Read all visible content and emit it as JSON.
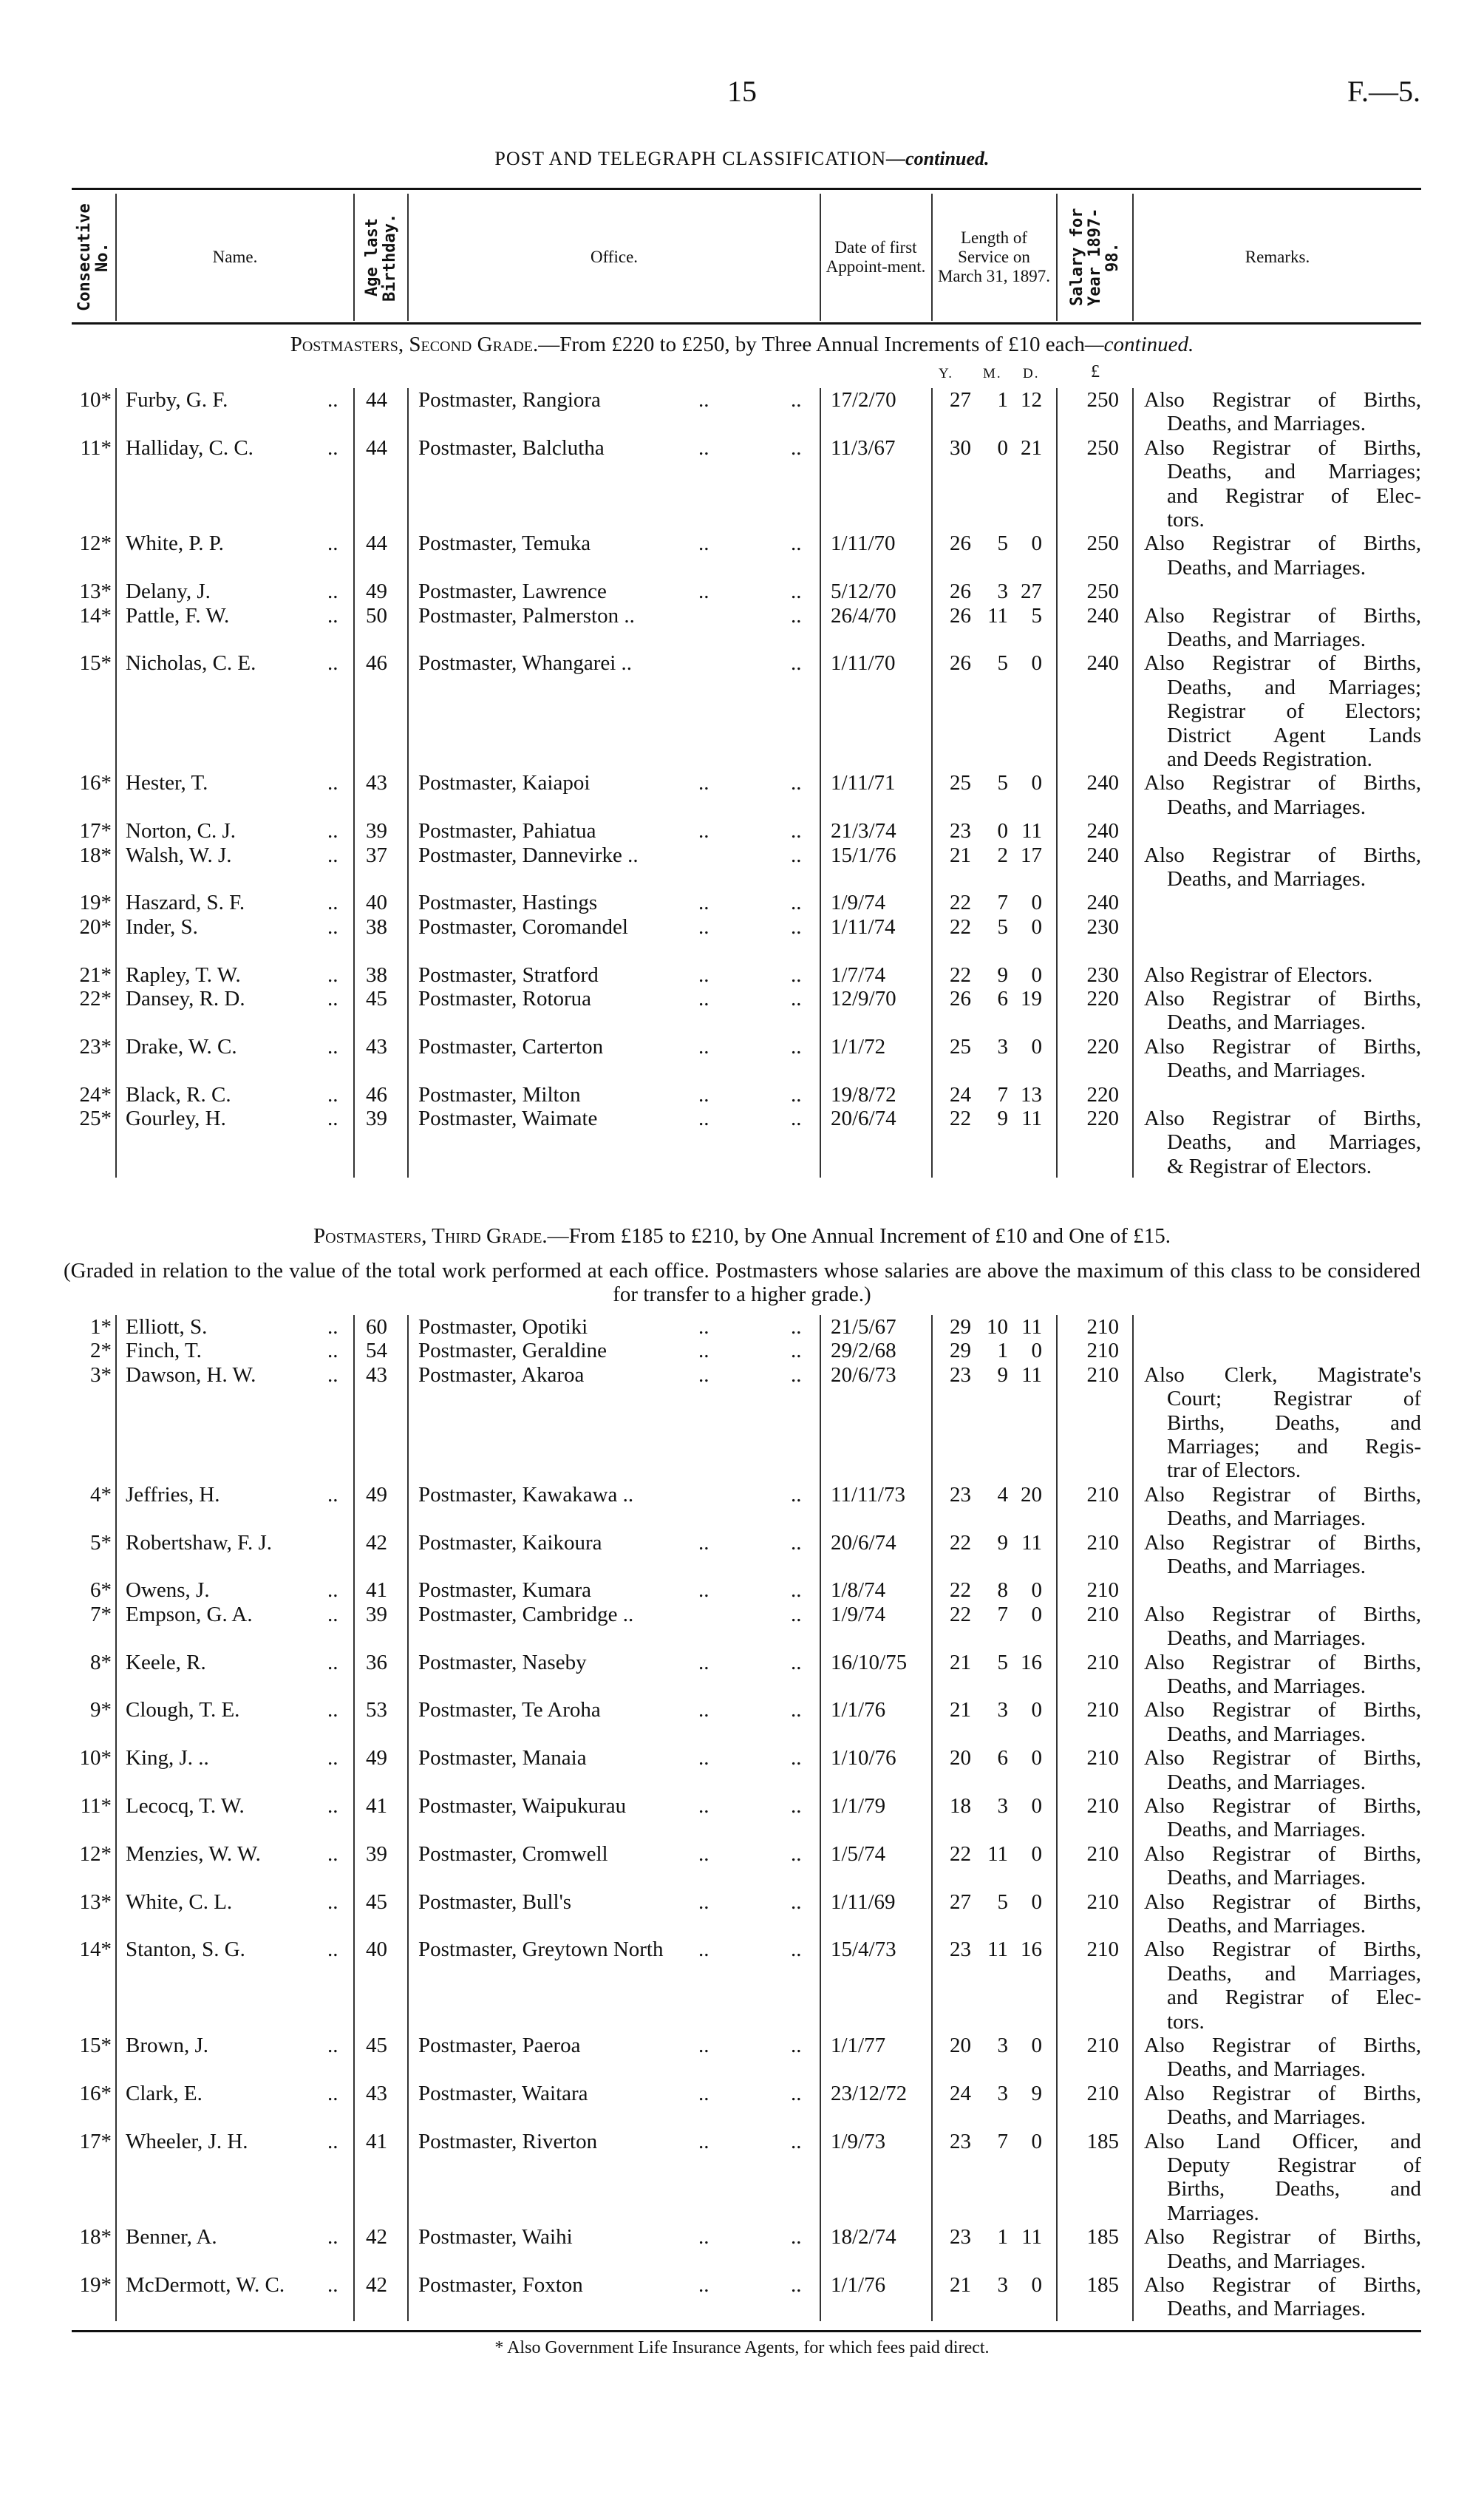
{
  "page": {
    "number": "15",
    "doc_ref": "F.—5."
  },
  "title": {
    "main": "POST AND TELEGRAPH CLASSIFICATION",
    "suffix": "—continued."
  },
  "columns": {
    "no": "Consecutive No.",
    "name": "Name.",
    "age": "Age last Birthday.",
    "office": "Office.",
    "date": "Date of first Appoint-ment.",
    "length": "Length of Service on March 31, 1897.",
    "salary": "Salary for Year 1897-98.",
    "remarks": "Remarks."
  },
  "units": {
    "y": "Y.",
    "m": "M.",
    "d": "D.",
    "salary": "£"
  },
  "leader": "..",
  "sections": [
    {
      "heading_sc": "Postmasters, Second Grade.",
      "heading_rest": "—From £220 to £250, by Three Annual Increments of £10 each",
      "heading_italic": "—continued.",
      "rows": [
        {
          "no": "10*",
          "name": "Furby, G. F.",
          "age": "44",
          "office": "Postmaster, Rangiora",
          "date": "17/2/70",
          "y": "27",
          "m": "1",
          "d": "12",
          "salary": "250",
          "remarks": [
            "Also Registrar of Births,",
            "Deaths, and Marriages."
          ]
        },
        {
          "no": "11*",
          "name": "Halliday, C. C.",
          "age": "44",
          "office": "Postmaster, Balclutha",
          "date": "11/3/67",
          "y": "30",
          "m": "0",
          "d": "21",
          "salary": "250",
          "remarks": [
            "Also Registrar of Births,",
            "Deaths, and Marriages;",
            "and Registrar of Elec-",
            "tors."
          ]
        },
        {
          "no": "12*",
          "name": "White, P. P.",
          "age": "44",
          "office": "Postmaster, Temuka",
          "date": "1/11/70",
          "y": "26",
          "m": "5",
          "d": "0",
          "salary": "250",
          "remarks": [
            "Also Registrar of Births,",
            "Deaths, and Marriages."
          ]
        },
        {
          "no": "13*",
          "name": "Delany, J.",
          "age": "49",
          "office": "Postmaster, Lawrence",
          "date": "5/12/70",
          "y": "26",
          "m": "3",
          "d": "27",
          "salary": "250",
          "remarks": []
        },
        {
          "no": "14*",
          "name": "Pattle, F. W.",
          "age": "50",
          "office": "Postmaster, Palmerston ..",
          "date": "26/4/70",
          "y": "26",
          "m": "11",
          "d": "5",
          "salary": "240",
          "remarks": [
            "Also Registrar of Births,",
            "Deaths, and Marriages."
          ]
        },
        {
          "no": "15*",
          "name": "Nicholas, C. E.",
          "age": "46",
          "office": "Postmaster, Whangarei ..",
          "date": "1/11/70",
          "y": "26",
          "m": "5",
          "d": "0",
          "salary": "240",
          "remarks": [
            "Also Registrar of Births,",
            "Deaths, and Marriages;",
            "Registrar of Electors;",
            "District Agent Lands",
            "and Deeds Registration."
          ]
        },
        {
          "no": "16*",
          "name": "Hester, T.",
          "age": "43",
          "office": "Postmaster, Kaiapoi",
          "date": "1/11/71",
          "y": "25",
          "m": "5",
          "d": "0",
          "salary": "240",
          "remarks": [
            "Also Registrar of Births,",
            "Deaths, and Marriages."
          ]
        },
        {
          "no": "17*",
          "name": "Norton, C. J.",
          "age": "39",
          "office": "Postmaster, Pahiatua",
          "date": "21/3/74",
          "y": "23",
          "m": "0",
          "d": "11",
          "salary": "240",
          "remarks": []
        },
        {
          "no": "18*",
          "name": "Walsh, W. J.",
          "age": "37",
          "office": "Postmaster, Dannevirke ..",
          "date": "15/1/76",
          "y": "21",
          "m": "2",
          "d": "17",
          "salary": "240",
          "remarks": [
            "Also Registrar of Births,",
            "Deaths, and Marriages."
          ]
        },
        {
          "no": "19*",
          "name": "Haszard, S. F.",
          "age": "40",
          "office": "Postmaster, Hastings",
          "date": "1/9/74",
          "y": "22",
          "m": "7",
          "d": "0",
          "salary": "240",
          "remarks": []
        },
        {
          "no": "20*",
          "name": "Inder, S.",
          "age": "38",
          "office": "Postmaster, Coromandel",
          "date": "1/11/74",
          "y": "22",
          "m": "5",
          "d": "0",
          "salary": "230",
          "remarks": []
        },
        {
          "no": "21*",
          "name": "Rapley, T. W.",
          "age": "38",
          "office": "Postmaster, Stratford",
          "date": "1/7/74",
          "y": "22",
          "m": "9",
          "d": "0",
          "salary": "230",
          "remarks": [
            "Also Registrar of Electors."
          ]
        },
        {
          "no": "22*",
          "name": "Dansey, R. D.",
          "age": "45",
          "office": "Postmaster, Rotorua",
          "date": "12/9/70",
          "y": "26",
          "m": "6",
          "d": "19",
          "salary": "220",
          "remarks": [
            "Also Registrar of Births,",
            "Deaths, and Marriages."
          ]
        },
        {
          "no": "23*",
          "name": "Drake, W. C.",
          "age": "43",
          "office": "Postmaster, Carterton",
          "date": "1/1/72",
          "y": "25",
          "m": "3",
          "d": "0",
          "salary": "220",
          "remarks": [
            "Also Registrar of Births,",
            "Deaths, and Marriages."
          ]
        },
        {
          "no": "24*",
          "name": "Black, R. C.",
          "age": "46",
          "office": "Postmaster, Milton",
          "date": "19/8/72",
          "y": "24",
          "m": "7",
          "d": "13",
          "salary": "220",
          "remarks": []
        },
        {
          "no": "25*",
          "name": "Gourley, H.",
          "age": "39",
          "office": "Postmaster, Waimate",
          "date": "20/6/74",
          "y": "22",
          "m": "9",
          "d": "11",
          "salary": "220",
          "remarks": [
            "Also Registrar of Births,",
            "Deaths, and Marriages,",
            "& Registrar of Electors."
          ]
        }
      ]
    },
    {
      "heading_sc": "Postmasters, Third Grade.",
      "heading_rest": "—From £185 to £210, by One Annual Increment of £10 and One of £15.",
      "note": "(Graded in relation to the value of the total work performed at each office. Postmasters whose salaries are above the maximum of this class to be considered for transfer to a higher grade.)",
      "rows": [
        {
          "no": "1*",
          "name": "Elliott, S.",
          "age": "60",
          "office": "Postmaster, Opotiki",
          "date": "21/5/67",
          "y": "29",
          "m": "10",
          "d": "11",
          "salary": "210",
          "remarks": []
        },
        {
          "no": "2*",
          "name": "Finch, T.",
          "age": "54",
          "office": "Postmaster, Geraldine",
          "date": "29/2/68",
          "y": "29",
          "m": "1",
          "d": "0",
          "salary": "210",
          "remarks": []
        },
        {
          "no": "3*",
          "name": "Dawson, H. W.",
          "age": "43",
          "office": "Postmaster, Akaroa",
          "date": "20/6/73",
          "y": "23",
          "m": "9",
          "d": "11",
          "salary": "210",
          "remarks": [
            "Also Clerk, Magistrate's",
            "Court; Registrar of",
            "Births, Deaths, and",
            "Marriages; and Regis-",
            "trar of Electors."
          ]
        },
        {
          "no": "4*",
          "name": "Jeffries, H.",
          "age": "49",
          "office": "Postmaster, Kawakawa ..",
          "date": "11/11/73",
          "y": "23",
          "m": "4",
          "d": "20",
          "salary": "210",
          "remarks": [
            "Also Registrar of Births,",
            "Deaths, and Marriages."
          ]
        },
        {
          "no": "5*",
          "name": "Robertshaw, F. J.",
          "no_leader": true,
          "age": "42",
          "office": "Postmaster, Kaikoura",
          "date": "20/6/74",
          "y": "22",
          "m": "9",
          "d": "11",
          "salary": "210",
          "remarks": [
            "Also Registrar of Births,",
            "Deaths, and Marriages."
          ]
        },
        {
          "no": "6*",
          "name": "Owens, J.",
          "age": "41",
          "office": "Postmaster, Kumara",
          "date": "1/8/74",
          "y": "22",
          "m": "8",
          "d": "0",
          "salary": "210",
          "remarks": []
        },
        {
          "no": "7*",
          "name": "Empson, G. A.",
          "age": "39",
          "office": "Postmaster, Cambridge ..",
          "date": "1/9/74",
          "y": "22",
          "m": "7",
          "d": "0",
          "salary": "210",
          "remarks": [
            "Also Registrar of Births,",
            "Deaths, and Marriages."
          ]
        },
        {
          "no": "8*",
          "name": "Keele, R.",
          "age": "36",
          "office": "Postmaster, Naseby",
          "date": "16/10/75",
          "y": "21",
          "m": "5",
          "d": "16",
          "salary": "210",
          "remarks": [
            "Also Registrar of Births,",
            "Deaths, and Marriages."
          ]
        },
        {
          "no": "9*",
          "name": "Clough, T. E.",
          "age": "53",
          "office": "Postmaster, Te Aroha",
          "date": "1/1/76",
          "y": "21",
          "m": "3",
          "d": "0",
          "salary": "210",
          "remarks": [
            "Also Registrar of Births,",
            "Deaths, and Marriages."
          ]
        },
        {
          "no": "10*",
          "name": "King, J. ..",
          "age": "49",
          "office": "Postmaster, Manaia",
          "date": "1/10/76",
          "y": "20",
          "m": "6",
          "d": "0",
          "salary": "210",
          "remarks": [
            "Also Registrar of Births,",
            "Deaths, and Marriages."
          ]
        },
        {
          "no": "11*",
          "name": "Lecocq, T. W.",
          "age": "41",
          "office": "Postmaster, Waipukurau",
          "date": "1/1/79",
          "y": "18",
          "m": "3",
          "d": "0",
          "salary": "210",
          "remarks": [
            "Also Registrar of Births,",
            "Deaths, and Marriages."
          ]
        },
        {
          "no": "12*",
          "name": "Menzies, W. W.",
          "age": "39",
          "office": "Postmaster, Cromwell",
          "date": "1/5/74",
          "y": "22",
          "m": "11",
          "d": "0",
          "salary": "210",
          "remarks": [
            "Also Registrar of Births,",
            "Deaths, and Marriages."
          ]
        },
        {
          "no": "13*",
          "name": "White, C. L.",
          "age": "45",
          "office": "Postmaster, Bull's",
          "date": "1/11/69",
          "y": "27",
          "m": "5",
          "d": "0",
          "salary": "210",
          "remarks": [
            "Also Registrar of Births,",
            "Deaths, and Marriages."
          ]
        },
        {
          "no": "14*",
          "name": "Stanton, S. G.",
          "age": "40",
          "office": "Postmaster, Greytown North",
          "date": "15/4/73",
          "y": "23",
          "m": "11",
          "d": "16",
          "salary": "210",
          "remarks": [
            "Also Registrar of Births,",
            "Deaths, and Marriages,",
            "and Registrar of Elec-",
            "tors."
          ]
        },
        {
          "no": "15*",
          "name": "Brown, J.",
          "age": "45",
          "office": "Postmaster, Paeroa",
          "date": "1/1/77",
          "y": "20",
          "m": "3",
          "d": "0",
          "salary": "210",
          "remarks": [
            "Also Registrar of Births,",
            "Deaths, and Marriages."
          ]
        },
        {
          "no": "16*",
          "name": "Clark, E.",
          "age": "43",
          "office": "Postmaster, Waitara",
          "date": "23/12/72",
          "y": "24",
          "m": "3",
          "d": "9",
          "salary": "210",
          "remarks": [
            "Also Registrar of Births,",
            "Deaths, and Marriages."
          ]
        },
        {
          "no": "17*",
          "name": "Wheeler, J. H.",
          "age": "41",
          "office": "Postmaster, Riverton",
          "date": "1/9/73",
          "y": "23",
          "m": "7",
          "d": "0",
          "salary": "185",
          "remarks": [
            "Also Land Officer, and",
            "Deputy Registrar of",
            "Births, Deaths, and",
            "Marriages."
          ]
        },
        {
          "no": "18*",
          "name": "Benner, A.",
          "age": "42",
          "office": "Postmaster, Waihi",
          "date": "18/2/74",
          "y": "23",
          "m": "1",
          "d": "11",
          "salary": "185",
          "remarks": [
            "Also Registrar of Births,",
            "Deaths, and Marriages."
          ]
        },
        {
          "no": "19*",
          "name": "McDermott, W. C.",
          "age": "42",
          "office": "Postmaster, Foxton",
          "date": "1/1/76",
          "y": "21",
          "m": "3",
          "d": "0",
          "salary": "185",
          "remarks": [
            "Also Registrar of Births,",
            "Deaths, and Marriages."
          ]
        }
      ]
    }
  ],
  "footnote": "* Also Government Life Insurance Agents, for which fees paid direct."
}
